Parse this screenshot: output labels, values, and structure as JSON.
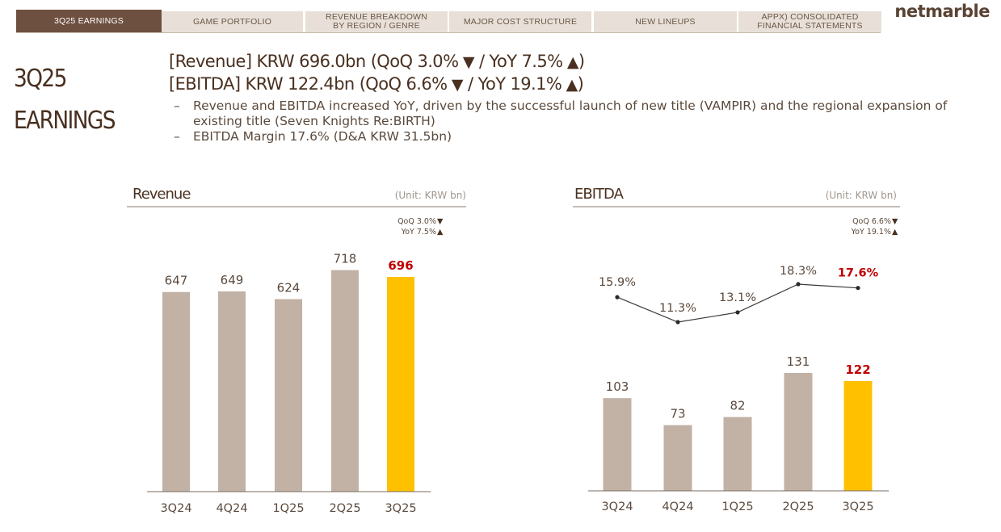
{
  "nav": {
    "tabs": [
      {
        "label": "3Q25  EARNINGS",
        "active": true
      },
      {
        "label": "GAME PORTFOLIO",
        "active": false
      },
      {
        "label": "REVENUE BREAKDOWN\nBY REGION / GENRE",
        "active": false
      },
      {
        "label": "MAJOR COST STRUCTURE",
        "active": false
      },
      {
        "label": "NEW LINEUPS",
        "active": false
      },
      {
        "label": "APPX) CONSOLIDATED\nFINANCIAL STATEMENTS",
        "active": false
      }
    ]
  },
  "logo": "netmarble",
  "page_title": {
    "line1": "3Q25",
    "line2": "EARNINGS"
  },
  "headlines": [
    {
      "prefix": "[Revenue] KRW 696.0bn (QoQ 3.0%",
      "mid": " / YoY 7.5%",
      "suffix": ")"
    },
    {
      "prefix": "[EBITDA] KRW 122.4bn (QoQ 6.6%",
      "mid": " / YoY 19.1%",
      "suffix": ")"
    }
  ],
  "bullets": [
    "Revenue and EBITDA increased YoY, driven by the successful launch of new title (VAMPIR) and the regional expansion of existing title (Seven Knights Re:BIRTH)",
    "EBITDA Margin 17.6% (D&A KRW 31.5bn)"
  ],
  "colors": {
    "bar": "#c2b1a5",
    "highlight_bar": "#ffc000",
    "highlight_text": "#c00000",
    "text": "#5b4a3c",
    "up_down": "#4a3020"
  },
  "chart_data": [
    {
      "type": "bar",
      "title": "Revenue",
      "unit": "(Unit: KRW bn)",
      "change_labels": {
        "qoq": "QoQ 3.0%",
        "yoy": "YoY 7.5%"
      },
      "categories": [
        "3Q24",
        "4Q24",
        "1Q25",
        "2Q25",
        "3Q25"
      ],
      "values": [
        647,
        649,
        624,
        718,
        696
      ],
      "highlight_index": 4,
      "ylim": [
        0,
        760
      ]
    },
    {
      "type": "bar",
      "title": "EBITDA",
      "unit": "(Unit: KRW bn)",
      "change_labels": {
        "qoq": "QoQ 6.6%",
        "yoy": "YoY 19.1%"
      },
      "categories": [
        "3Q24",
        "4Q24",
        "1Q25",
        "2Q25",
        "3Q25"
      ],
      "values": [
        103,
        73,
        82,
        131,
        122
      ],
      "highlight_index": 4,
      "ylim": [
        0,
        144
      ],
      "margin_series": {
        "type": "line",
        "values": [
          15.9,
          11.3,
          13.1,
          18.3,
          17.6
        ],
        "labels": [
          "15.9%",
          "11.3%",
          "13.1%",
          "18.3%",
          "17.6%"
        ]
      }
    }
  ]
}
